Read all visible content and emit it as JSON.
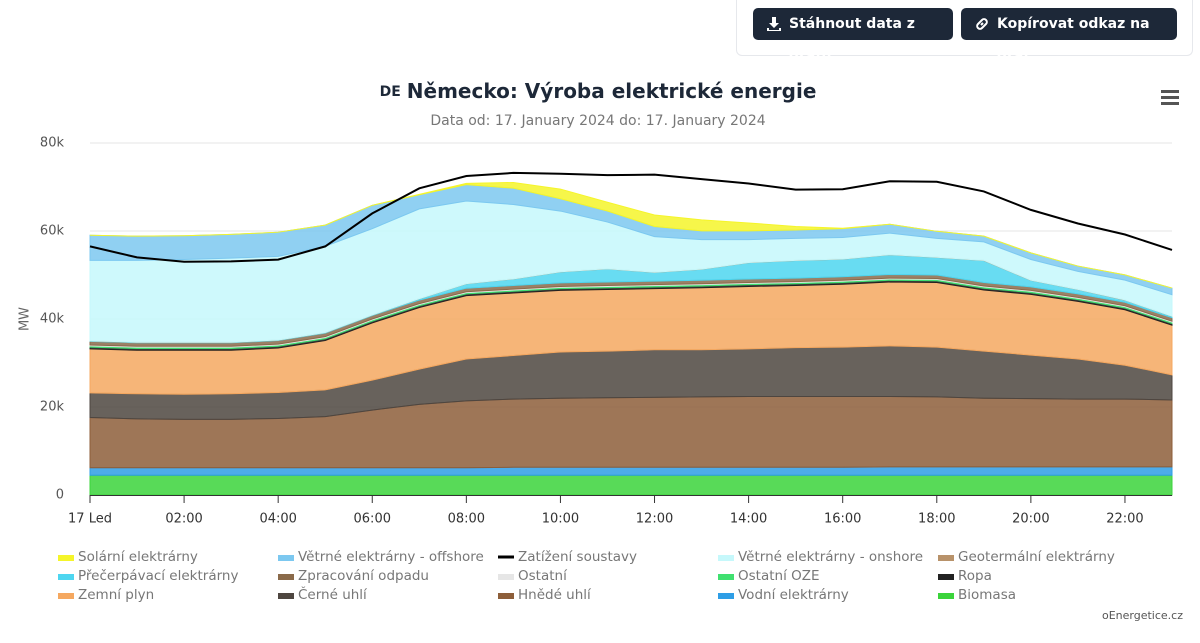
{
  "buttons": [
    "Stáhnout data z grafu",
    "Kopírovat odkaz na graf"
  ],
  "credit": "oEnergetice.cz",
  "chart_data": {
    "type": "area",
    "stacking": "normal",
    "flag": "DE",
    "title": "Německo: Výroba elektrické energie",
    "subtitle": "Data od: 17. January 2024 do: 17. January 2024",
    "ylabel": "MW",
    "categories": [
      "17 Led",
      null,
      "02:00",
      null,
      "04:00",
      null,
      "06:00",
      null,
      "08:00",
      null,
      "10:00",
      null,
      "12:00",
      null,
      "14:00",
      null,
      "16:00",
      null,
      "18:00",
      null,
      "20:00",
      null,
      "22:00",
      null
    ],
    "ylim": [
      0,
      80000
    ],
    "yticks": [
      {
        "value": 0,
        "label": "0"
      },
      {
        "value": 20000,
        "label": "20k"
      },
      {
        "value": 40000,
        "label": "40k"
      },
      {
        "value": 60000,
        "label": "60k"
      },
      {
        "value": 80000,
        "label": "80k"
      }
    ],
    "grid": true,
    "series": [
      {
        "name": "Solární elektrárny",
        "color": "#f5f52a",
        "values": [
          0,
          0,
          0,
          0,
          0,
          0,
          0,
          100,
          300,
          1300,
          2200,
          2000,
          2600,
          2500,
          1800,
          800,
          100,
          0,
          0,
          0,
          0,
          0,
          0,
          0
        ]
      },
      {
        "name": "Větrné elektrárny - offshore",
        "color": "#7cc8f0",
        "values": [
          5700,
          5500,
          5400,
          5400,
          5500,
          4800,
          5300,
          3200,
          3700,
          3700,
          2800,
          2500,
          2300,
          2000,
          2000,
          1900,
          2000,
          2000,
          1600,
          1300,
          1500,
          1200,
          1200,
          1500
        ]
      },
      {
        "name": "Zatížení soustavy",
        "color": "#000000",
        "type": "line",
        "values": [
          56500,
          54000,
          53000,
          53100,
          53500,
          56500,
          64000,
          69700,
          72500,
          73200,
          73000,
          72700,
          72800,
          71800,
          70800,
          69400,
          69500,
          71300,
          71200,
          69000,
          64800,
          61700,
          59200,
          55700
        ]
      },
      {
        "name": "Větrné elektrárny - onshore",
        "color": "#c6f8fb",
        "values": [
          18300,
          18600,
          18800,
          19100,
          19000,
          19600,
          19600,
          20400,
          18800,
          16900,
          13800,
          10600,
          8100,
          6700,
          5200,
          5000,
          4900,
          4900,
          4300,
          4200,
          4700,
          4100,
          4500,
          4900
        ]
      },
      {
        "name": "Geotermální elektrárny",
        "color": "#b8926a",
        "values": [
          30,
          30,
          30,
          30,
          30,
          30,
          30,
          30,
          30,
          30,
          30,
          30,
          30,
          30,
          30,
          30,
          30,
          30,
          30,
          30,
          30,
          30,
          30,
          30
        ]
      },
      {
        "name": "Přečerpávací elektrárny",
        "color": "#4ed6f0",
        "values": [
          100,
          100,
          100,
          100,
          100,
          100,
          100,
          300,
          1000,
          1500,
          2500,
          3000,
          2000,
          2500,
          3700,
          4000,
          4000,
          4500,
          4000,
          5000,
          1500,
          1000,
          500,
          300
        ]
      },
      {
        "name": "Zpracování odpadu",
        "color": "#8a6a4a",
        "values": [
          800,
          800,
          800,
          800,
          800,
          800,
          800,
          800,
          800,
          800,
          800,
          800,
          800,
          800,
          800,
          800,
          800,
          800,
          800,
          800,
          800,
          800,
          800,
          800
        ]
      },
      {
        "name": "Ostatní",
        "color": "#e6e6e6",
        "values": [
          200,
          200,
          200,
          200,
          200,
          200,
          200,
          200,
          200,
          200,
          200,
          200,
          200,
          200,
          200,
          200,
          200,
          200,
          200,
          200,
          200,
          200,
          200,
          200
        ]
      },
      {
        "name": "Ostatní OZE",
        "color": "#40e070",
        "values": [
          300,
          300,
          300,
          300,
          300,
          300,
          300,
          300,
          300,
          300,
          300,
          300,
          300,
          300,
          300,
          300,
          300,
          300,
          300,
          300,
          300,
          300,
          300,
          300
        ]
      },
      {
        "name": "Ropa",
        "color": "#222222",
        "values": [
          400,
          400,
          400,
          400,
          400,
          400,
          400,
          400,
          400,
          400,
          400,
          400,
          400,
          400,
          400,
          400,
          400,
          400,
          400,
          400,
          400,
          400,
          400,
          400
        ]
      },
      {
        "name": "Zemní plyn",
        "color": "#f5a860",
        "values": [
          10000,
          9900,
          10000,
          9900,
          10100,
          11200,
          13000,
          14000,
          14400,
          14200,
          14000,
          14000,
          13900,
          14100,
          14200,
          14100,
          14300,
          14500,
          14700,
          13900,
          13800,
          13100,
          12600,
          11300
        ]
      },
      {
        "name": "Černé uhlí",
        "color": "#4e4640",
        "values": [
          5600,
          5700,
          5700,
          5800,
          5900,
          6100,
          6800,
          8000,
          9500,
          9900,
          10500,
          10600,
          10800,
          10700,
          10800,
          11100,
          11200,
          11500,
          11300,
          10700,
          9900,
          9100,
          7700,
          5700
        ]
      },
      {
        "name": "Hnědé uhlí",
        "color": "#8d5e3a",
        "values": [
          11400,
          11100,
          11000,
          11000,
          11200,
          11600,
          13100,
          14400,
          15200,
          15500,
          15700,
          15800,
          15900,
          16000,
          16100,
          16100,
          16100,
          16000,
          15900,
          15600,
          15500,
          15400,
          15400,
          15200
        ]
      },
      {
        "name": "Vodní elektrárny",
        "color": "#2e9ee6",
        "values": [
          1700,
          1700,
          1700,
          1700,
          1700,
          1700,
          1700,
          1700,
          1700,
          1800,
          1800,
          1800,
          1800,
          1800,
          1800,
          1800,
          1800,
          1900,
          1900,
          1900,
          1900,
          1900,
          1900,
          1900
        ]
      },
      {
        "name": "Biomasa",
        "color": "#3bd43b",
        "values": [
          4500,
          4500,
          4500,
          4500,
          4500,
          4500,
          4500,
          4500,
          4500,
          4500,
          4500,
          4500,
          4500,
          4500,
          4500,
          4500,
          4500,
          4500,
          4500,
          4500,
          4500,
          4500,
          4500,
          4500
        ]
      }
    ]
  }
}
